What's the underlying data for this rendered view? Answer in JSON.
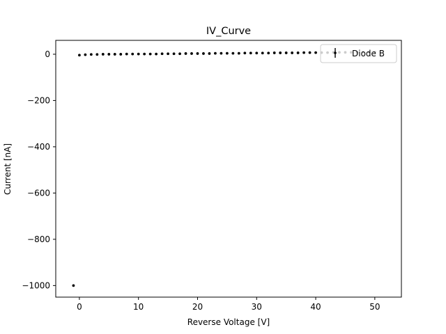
{
  "chart_data": {
    "type": "scatter",
    "title": "IV_Curve",
    "xlabel": "Reverse Voltage [V]",
    "ylabel": "Current [nA]",
    "xlim": [
      -4,
      54.5
    ],
    "ylim": [
      -1050,
      60
    ],
    "xticks": [
      0,
      10,
      20,
      30,
      40,
      50
    ],
    "yticks": [
      0,
      -200,
      -400,
      -600,
      -800,
      -1000
    ],
    "ytick_labels": [
      "0",
      "−200",
      "−400",
      "−600",
      "−800",
      "−1000"
    ],
    "grid": false,
    "legend": {
      "position": "upper-right",
      "entries": [
        "Diode B"
      ]
    },
    "series": [
      {
        "name": "Diode B",
        "color": "#000000",
        "marker": "point-with-errorbar",
        "x": [
          -1,
          0,
          1,
          2,
          3,
          4,
          5,
          6,
          7,
          8,
          9,
          10,
          11,
          12,
          13,
          14,
          15,
          16,
          17,
          18,
          19,
          20,
          21,
          22,
          23,
          24,
          25,
          26,
          27,
          28,
          29,
          30,
          31,
          32,
          33,
          34,
          35,
          36,
          37,
          38,
          39,
          40,
          41,
          42,
          43,
          44,
          45,
          46,
          47,
          48,
          49,
          50
        ],
        "y": [
          -1000,
          -4,
          -2,
          -1,
          -1,
          0,
          0,
          0,
          0,
          1,
          1,
          1,
          1,
          1,
          1,
          2,
          2,
          2,
          2,
          3,
          3,
          3,
          3,
          3,
          4,
          4,
          4,
          4,
          4,
          5,
          5,
          5,
          5,
          5,
          6,
          6,
          6,
          6,
          6,
          7,
          7,
          7,
          7,
          7,
          8,
          8,
          8,
          8,
          8,
          9,
          9,
          9
        ]
      }
    ]
  }
}
